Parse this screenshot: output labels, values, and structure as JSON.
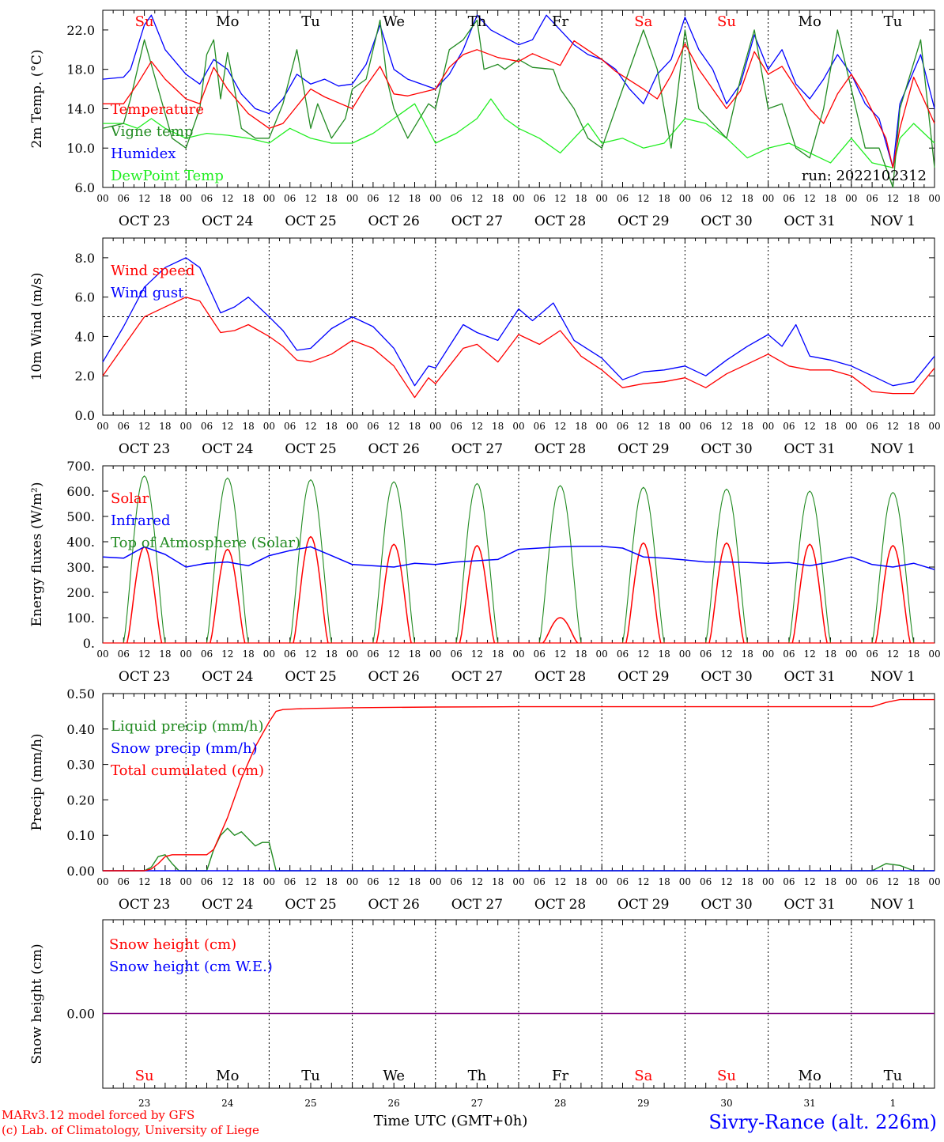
{
  "colors": {
    "red": "#ff0000",
    "green": "#228b22",
    "blue": "#0000ff",
    "lightgreen": "#22ee22",
    "purple": "#800080"
  },
  "time_axis": {
    "hour_labels": [
      "00",
      "06",
      "12",
      "18"
    ],
    "final_hour_label": "00",
    "dates": [
      "OCT 23",
      "OCT 24",
      "OCT 25",
      "OCT 26",
      "OCT 27",
      "OCT 28",
      "OCT 29",
      "OCT 30",
      "OCT 31",
      "NOV  1"
    ],
    "weekdays": [
      "Su",
      "Mo",
      "Tu",
      "We",
      "Th",
      "Fr",
      "Sa",
      "Su",
      "Mo",
      "Tu"
    ],
    "weekday_colors": [
      "red",
      "black",
      "black",
      "black",
      "black",
      "black",
      "red",
      "red",
      "black",
      "black"
    ],
    "day_numbers": [
      "23",
      "24",
      "25",
      "26",
      "27",
      "28",
      "29",
      "30",
      "31",
      "1"
    ],
    "xlabel": "Time UTC (GMT+0h)"
  },
  "footer": {
    "model_line": "MARv3.12 model forced by GFS",
    "credit_line": "(c) Lab. of Climatology, University of Liege",
    "station": "Sivry-Rance (alt. 226m)"
  },
  "chart_data": [
    {
      "type": "line",
      "ylabel": "2m Temp. (°C)",
      "ylim": [
        6.0,
        24.0
      ],
      "yticks": [
        "6.0",
        "10.0",
        "14.0",
        "18.0",
        "22.0"
      ],
      "run_label": "run: 2022102312",
      "x_units": "hours since Oct 23 00 UTC",
      "series": [
        {
          "name": "Temperature",
          "color": "red",
          "x": [
            0,
            6,
            10,
            14,
            18,
            24,
            28,
            32,
            36,
            42,
            48,
            52,
            60,
            64,
            72,
            76,
            80,
            84,
            88,
            96,
            100,
            104,
            108,
            114,
            120,
            124,
            132,
            136,
            144,
            148,
            156,
            160,
            164,
            168,
            172,
            180,
            184,
            188,
            192,
            196,
            204,
            208,
            212,
            216,
            220,
            226,
            228,
            230,
            234,
            240
          ],
          "y": [
            14.5,
            14.5,
            16.5,
            18.8,
            17,
            15,
            14.5,
            18.2,
            16,
            13.5,
            12,
            12.5,
            16,
            15.2,
            14,
            16.3,
            18.3,
            15.5,
            15.3,
            16,
            18.2,
            19.5,
            20,
            19.2,
            18.8,
            19.6,
            18.4,
            20.9,
            19,
            17.8,
            16,
            15,
            17.4,
            20.6,
            18,
            14,
            15.8,
            19.8,
            17.5,
            18.3,
            14,
            12.5,
            15.5,
            17.5,
            15.2,
            11,
            8,
            12,
            17.2,
            12.5
          ]
        },
        {
          "name": "Vigne temp",
          "color": "green",
          "x": [
            0,
            6,
            8,
            12,
            16,
            20,
            24,
            28,
            30,
            32,
            34,
            36,
            38,
            40,
            44,
            48,
            52,
            56,
            60,
            62,
            66,
            70,
            72,
            76,
            80,
            82,
            84,
            88,
            94,
            96,
            100,
            104,
            108,
            110,
            114,
            116,
            120,
            124,
            130,
            132,
            136,
            140,
            144,
            150,
            156,
            160,
            164,
            168,
            172,
            180,
            184,
            188,
            192,
            196,
            200,
            204,
            208,
            212,
            216,
            220,
            224,
            228,
            230,
            236,
            240
          ],
          "y": [
            12,
            12.5,
            15,
            21,
            16,
            11,
            10,
            14,
            19.5,
            21,
            15,
            19.7,
            16,
            12,
            11,
            11,
            14.5,
            20,
            12,
            14.5,
            11,
            13,
            16,
            17,
            23,
            17,
            14,
            11,
            14.5,
            14,
            20,
            21,
            23,
            18,
            18.5,
            18,
            19,
            18.2,
            18,
            16,
            14,
            11,
            10,
            16,
            22,
            18,
            10,
            22,
            14,
            11,
            17,
            22,
            14,
            14.5,
            10,
            9,
            14,
            22,
            16,
            10,
            10,
            6,
            14,
            21,
            8
          ]
        },
        {
          "name": "Humidex",
          "color": "blue",
          "x": [
            0,
            6,
            8,
            12,
            14,
            18,
            24,
            28,
            32,
            36,
            40,
            44,
            48,
            52,
            56,
            60,
            64,
            68,
            72,
            76,
            80,
            84,
            88,
            96,
            100,
            104,
            108,
            112,
            120,
            124,
            128,
            132,
            136,
            140,
            144,
            148,
            152,
            156,
            160,
            164,
            168,
            172,
            176,
            180,
            184,
            188,
            192,
            196,
            200,
            204,
            208,
            212,
            216,
            220,
            224,
            228,
            230,
            236,
            240
          ],
          "y": [
            17,
            17.2,
            18,
            22.5,
            23.5,
            20,
            17.5,
            16.5,
            19,
            18,
            15.5,
            14,
            13.5,
            15,
            17.5,
            16.5,
            17,
            16.3,
            16.5,
            18.5,
            22.5,
            18,
            17,
            16,
            17.5,
            20,
            23.5,
            22,
            20.5,
            21,
            23.5,
            22,
            20.5,
            19.5,
            19,
            18,
            16,
            14.5,
            17.5,
            19,
            23.3,
            20,
            18,
            14.5,
            16.5,
            21.5,
            18,
            20,
            16.5,
            15,
            17,
            19.5,
            17.5,
            14.5,
            13,
            8,
            14.5,
            19.5,
            14
          ]
        },
        {
          "name": "DewPoint Temp",
          "color": "lightgreen",
          "x": [
            0,
            6,
            10,
            14,
            18,
            24,
            30,
            36,
            42,
            48,
            54,
            60,
            66,
            72,
            78,
            84,
            90,
            96,
            102,
            108,
            112,
            116,
            120,
            126,
            132,
            136,
            140,
            144,
            150,
            156,
            162,
            168,
            174,
            180,
            186,
            192,
            198,
            204,
            210,
            216,
            222,
            228,
            230,
            234,
            240
          ],
          "y": [
            12.5,
            12.5,
            12,
            13,
            12,
            11,
            11.5,
            11.3,
            11,
            10.5,
            12,
            11,
            10.5,
            10.5,
            11.5,
            13,
            14.5,
            10.5,
            11.5,
            13,
            15,
            13,
            12,
            11,
            9.5,
            11,
            12.5,
            10.5,
            11,
            10,
            10.5,
            13,
            12.5,
            11,
            9,
            10,
            10.5,
            9.5,
            8.5,
            11,
            8.5,
            8,
            11,
            12.5,
            10.5
          ]
        }
      ]
    },
    {
      "type": "line",
      "ylabel": "10m Wind (m/s)",
      "ylim": [
        0.0,
        9.0
      ],
      "yticks": [
        "0.0",
        "2.0",
        "4.0",
        "6.0",
        "8.0"
      ],
      "reference_line": 5.0,
      "x_units": "hours since Oct 23 00 UTC",
      "series": [
        {
          "name": "Wind speed",
          "color": "red",
          "x": [
            0,
            6,
            12,
            18,
            24,
            28,
            34,
            38,
            42,
            48,
            52,
            56,
            60,
            66,
            72,
            78,
            84,
            90,
            94,
            96,
            100,
            104,
            108,
            114,
            120,
            126,
            132,
            138,
            144,
            150,
            156,
            162,
            168,
            174,
            180,
            186,
            192,
            198,
            204,
            210,
            216,
            222,
            228,
            234,
            240
          ],
          "y": [
            2,
            3.5,
            5,
            5.5,
            6,
            5.8,
            4.2,
            4.3,
            4.6,
            4,
            3.5,
            2.8,
            2.7,
            3.1,
            3.8,
            3.4,
            2.5,
            0.9,
            1.9,
            1.6,
            2.5,
            3.4,
            3.6,
            2.7,
            4.1,
            3.6,
            4.3,
            3,
            2.3,
            1.4,
            1.6,
            1.7,
            1.9,
            1.4,
            2.1,
            2.6,
            3.1,
            2.5,
            2.3,
            2.3,
            2.0,
            1.2,
            1.1,
            1.1,
            2.4
          ]
        },
        {
          "name": "Wind gust",
          "color": "blue",
          "x": [
            0,
            6,
            12,
            18,
            24,
            28,
            34,
            38,
            42,
            48,
            52,
            56,
            60,
            66,
            72,
            78,
            84,
            90,
            94,
            96,
            100,
            104,
            108,
            114,
            120,
            124,
            130,
            136,
            144,
            150,
            156,
            162,
            168,
            174,
            180,
            186,
            192,
            196,
            200,
            204,
            210,
            216,
            222,
            228,
            234,
            240
          ],
          "y": [
            2.7,
            4.5,
            6.5,
            7.5,
            8,
            7.5,
            5.2,
            5.5,
            6,
            5,
            4.3,
            3.3,
            3.4,
            4.4,
            5,
            4.5,
            3.4,
            1.5,
            2.5,
            2.4,
            3.5,
            4.6,
            4.2,
            3.8,
            5.4,
            4.8,
            5.7,
            3.8,
            2.9,
            1.8,
            2.2,
            2.3,
            2.5,
            2.0,
            2.8,
            3.5,
            4.1,
            3.5,
            4.6,
            3.0,
            2.8,
            2.5,
            2.0,
            1.5,
            1.7,
            3.0
          ]
        }
      ]
    },
    {
      "type": "line",
      "ylabel": "Energy fluxes (W/m²)",
      "ylim": [
        0,
        700
      ],
      "yticks": [
        "0.",
        "100.",
        "200.",
        "300.",
        "400.",
        "500.",
        "600.",
        "700."
      ],
      "x_units": "hours since Oct 23 00 UTC",
      "daily_top_of_atmosphere_peak": [
        660,
        652,
        645,
        637,
        630,
        622,
        615,
        608,
        600,
        595
      ],
      "daily_solar_peak": [
        380,
        370,
        420,
        390,
        385,
        100,
        395,
        395,
        390,
        385
      ],
      "series": [
        {
          "name": "Solar",
          "color": "red"
        },
        {
          "name": "Infrared",
          "color": "blue",
          "x": [
            0,
            6,
            12,
            18,
            24,
            30,
            36,
            42,
            48,
            54,
            60,
            66,
            72,
            78,
            84,
            90,
            96,
            102,
            108,
            114,
            120,
            126,
            132,
            138,
            144,
            150,
            156,
            162,
            168,
            174,
            180,
            186,
            192,
            198,
            204,
            210,
            216,
            222,
            228,
            234,
            240
          ],
          "y": [
            340,
            335,
            380,
            350,
            300,
            315,
            320,
            305,
            345,
            365,
            380,
            345,
            310,
            305,
            300,
            315,
            310,
            320,
            325,
            330,
            370,
            375,
            380,
            382,
            382,
            375,
            340,
            335,
            328,
            320,
            320,
            318,
            315,
            318,
            305,
            320,
            340,
            310,
            300,
            315,
            290
          ]
        },
        {
          "name": "Top of Atmosphere (Solar)",
          "color": "green"
        }
      ]
    },
    {
      "type": "line",
      "ylabel": "Precip (mm/h)",
      "ylim": [
        0.0,
        0.5
      ],
      "yticks": [
        "0.00",
        "0.10",
        "0.20",
        "0.30",
        "0.40",
        "0.50"
      ],
      "x_units": "hours since Oct 23 00 UTC",
      "series": [
        {
          "name": "Liquid precip (mm/h)",
          "color": "green",
          "x": [
            0,
            12,
            14,
            16,
            18,
            20,
            22,
            24,
            30,
            32,
            34,
            36,
            38,
            40,
            42,
            44,
            46,
            48,
            50,
            54,
            60,
            200,
            222,
            226,
            230,
            234,
            240
          ],
          "y": [
            0,
            0,
            0.01,
            0.04,
            0.045,
            0.02,
            0,
            0,
            0,
            0.06,
            0.1,
            0.12,
            0.1,
            0.11,
            0.09,
            0.07,
            0.08,
            0.08,
            0,
            0,
            0,
            0,
            0,
            0.02,
            0.015,
            0,
            0
          ]
        },
        {
          "name": "Snow precip (mm/h)",
          "color": "blue",
          "x": [
            0,
            240
          ],
          "y": [
            0,
            0
          ]
        },
        {
          "name": "Total cumulated (cm)",
          "color": "red",
          "x": [
            0,
            12,
            14,
            16,
            18,
            20,
            24,
            30,
            32,
            36,
            40,
            44,
            48,
            50,
            52,
            56,
            60,
            72,
            96,
            120,
            144,
            168,
            192,
            216,
            222,
            226,
            230,
            240
          ],
          "y": [
            0,
            0,
            0.005,
            0.02,
            0.04,
            0.045,
            0.045,
            0.045,
            0.06,
            0.15,
            0.26,
            0.35,
            0.42,
            0.45,
            0.455,
            0.457,
            0.458,
            0.46,
            0.462,
            0.463,
            0.463,
            0.463,
            0.463,
            0.463,
            0.463,
            0.475,
            0.483,
            0.483
          ]
        }
      ]
    },
    {
      "type": "line",
      "ylabel": "Snow height (cm)",
      "yticks": [
        "0.00"
      ],
      "x_units": "hours since Oct 23 00 UTC",
      "series": [
        {
          "name": "Snow height (cm)",
          "color": "red",
          "x": [
            0,
            240
          ],
          "y": [
            0,
            0
          ]
        },
        {
          "name": "Snow height (cm W.E.)",
          "color": "blue",
          "x": [
            0,
            240
          ],
          "y": [
            0,
            0
          ]
        }
      ]
    }
  ]
}
